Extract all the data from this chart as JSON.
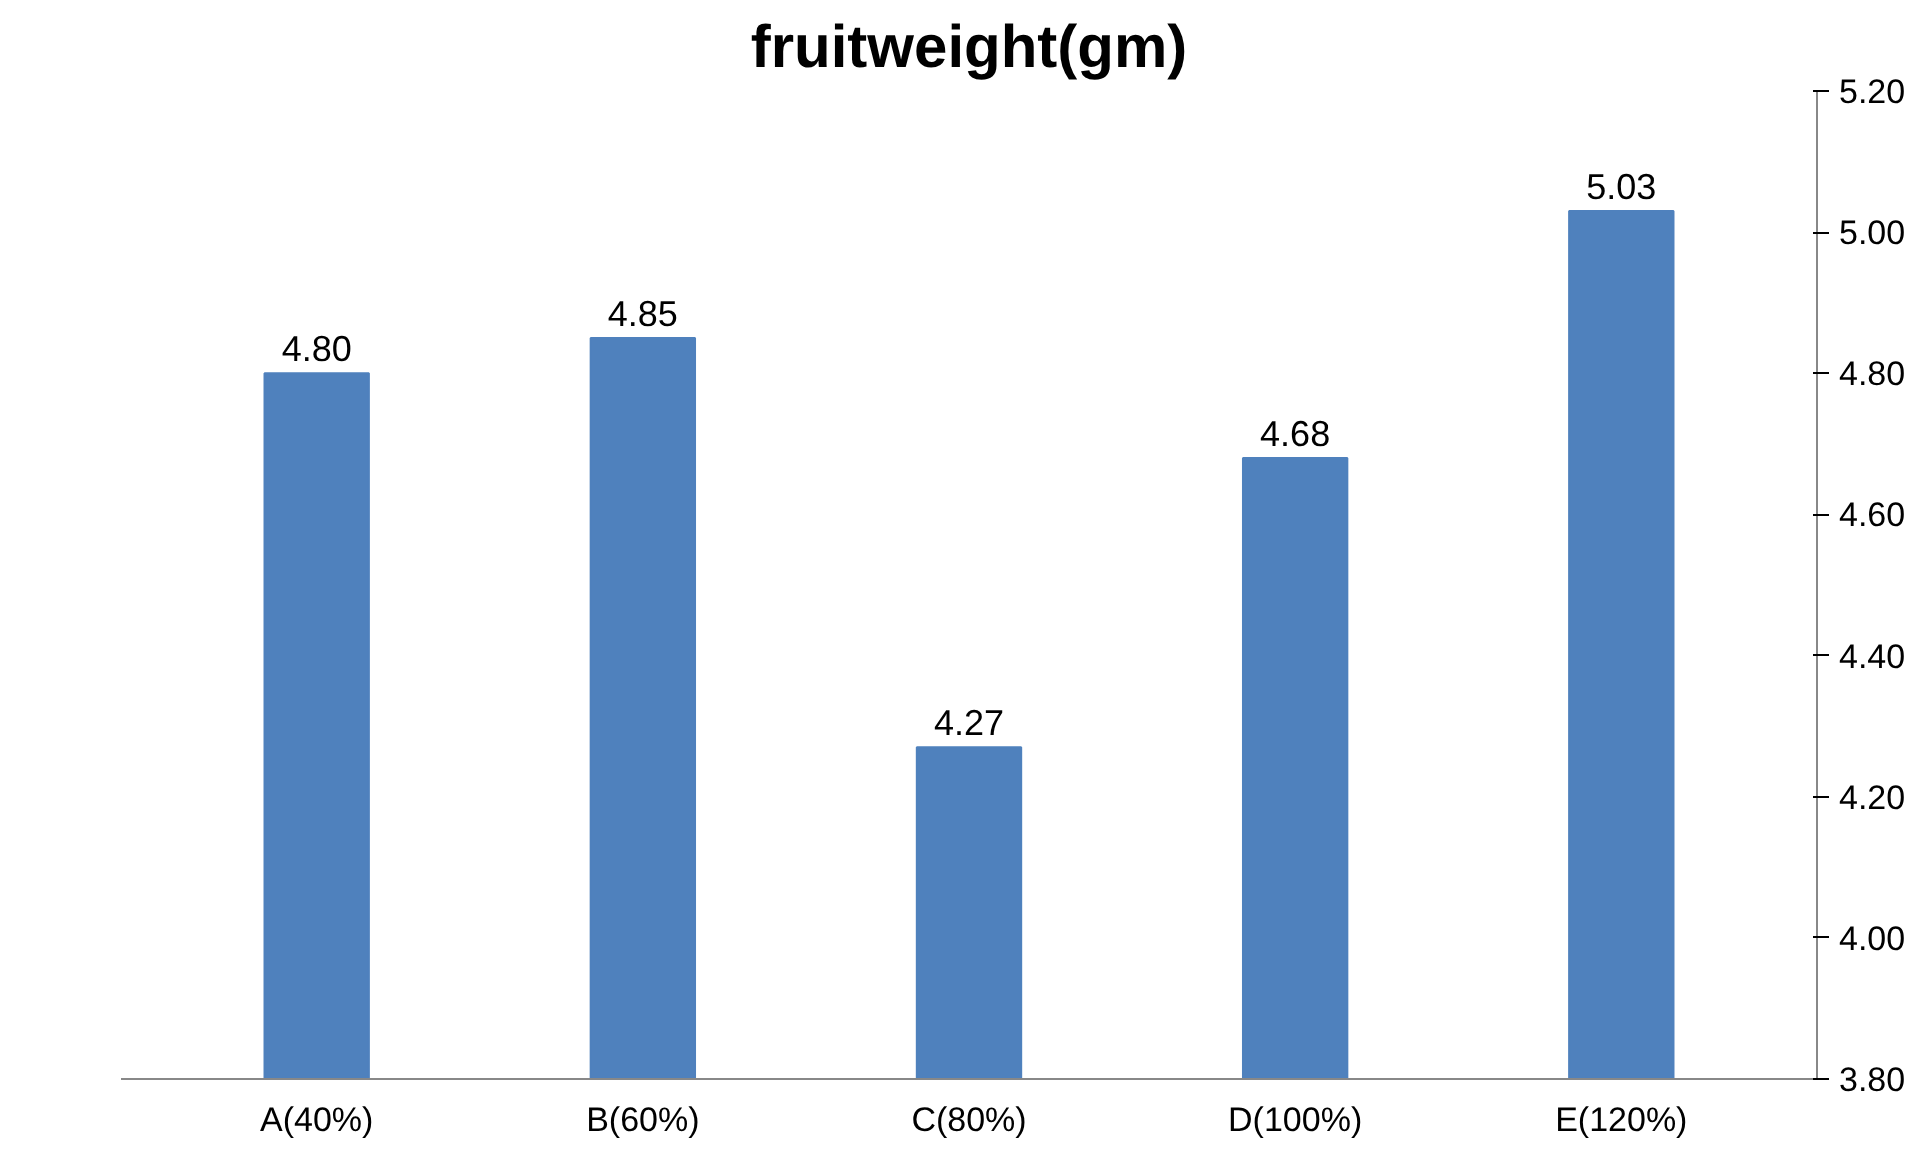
{
  "chart_data": {
    "type": "bar",
    "title": "fruitweight(gm)",
    "categories": [
      "A(40%)",
      "B(60%)",
      "C(80%)",
      "D(100%)",
      "E(120%)"
    ],
    "values": [
      4.8,
      4.85,
      4.27,
      4.68,
      5.03
    ],
    "value_labels": [
      "4.80",
      "4.85",
      "4.27",
      "4.68",
      "5.03"
    ],
    "color": "#4f81bd",
    "ylim": [
      3.8,
      5.2
    ],
    "yticks": [
      {
        "value": 3.8,
        "label": "3.80"
      },
      {
        "value": 4.0,
        "label": "4.00"
      },
      {
        "value": 4.2,
        "label": "4.20"
      },
      {
        "value": 4.4,
        "label": "4.40"
      },
      {
        "value": 4.6,
        "label": "4.60"
      },
      {
        "value": 4.8,
        "label": "4.80"
      },
      {
        "value": 5.0,
        "label": "5.00"
      },
      {
        "value": 5.2,
        "label": "5.20"
      }
    ],
    "grid": false
  }
}
